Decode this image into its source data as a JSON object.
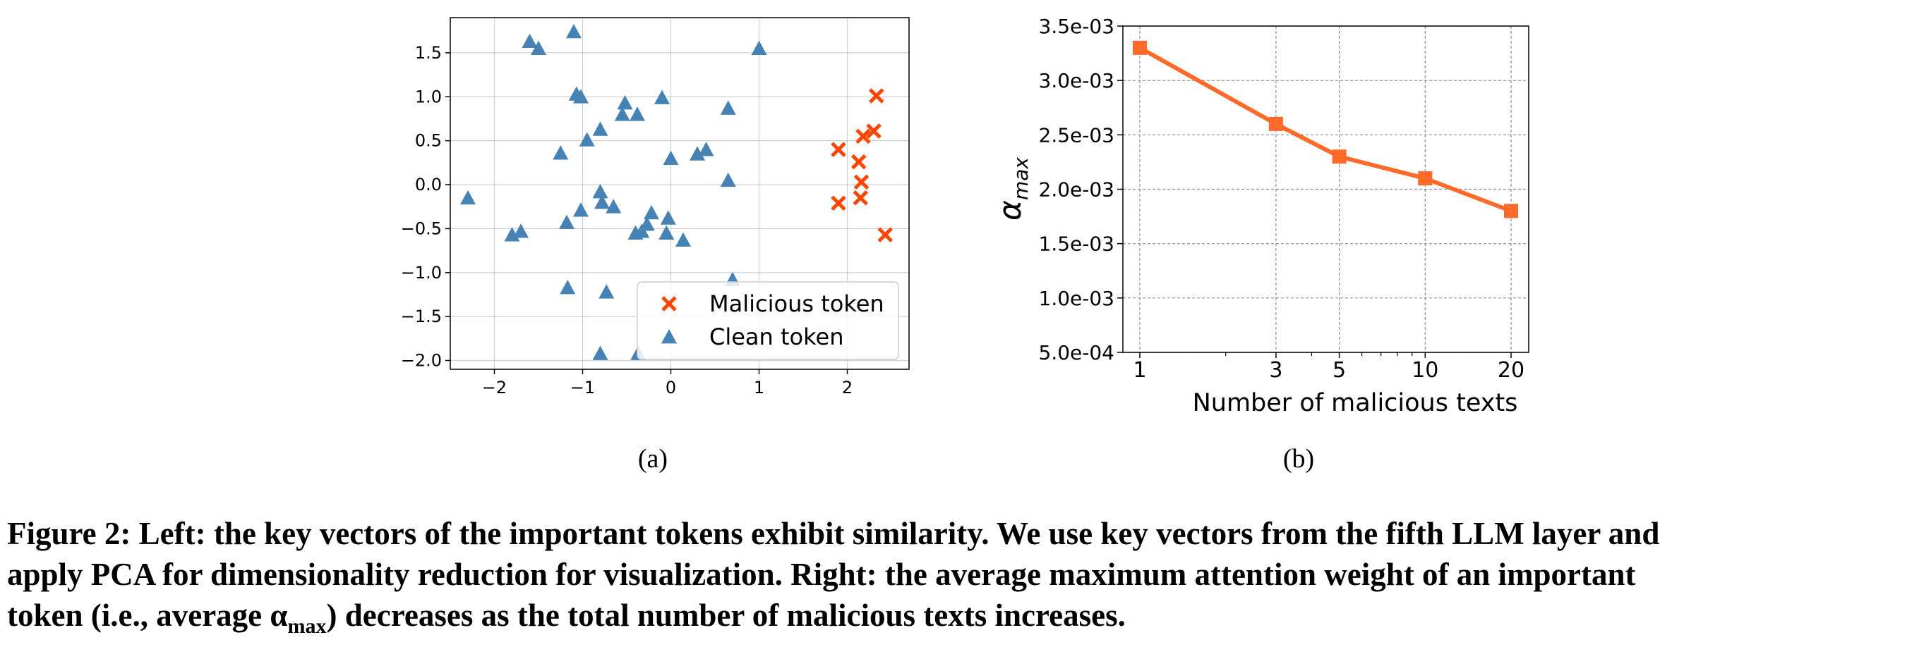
{
  "chart_data": [
    {
      "type": "scatter",
      "panel_label": "(a)",
      "xlim": [
        -2.5,
        2.7
      ],
      "ylim": [
        -2.1,
        1.9
      ],
      "xticks": [
        -2,
        -1,
        0,
        1,
        2
      ],
      "xtick_labels": [
        "−2",
        "−1",
        "0",
        "1",
        "2"
      ],
      "yticks": [
        -2.0,
        -1.5,
        -1.0,
        -0.5,
        0.0,
        0.5,
        1.0,
        1.5
      ],
      "ytick_labels": [
        "−2.0",
        "−1.5",
        "−1.0",
        "−0.5",
        "0.0",
        "0.5",
        "1.0",
        "1.5"
      ],
      "grid": true,
      "legend_position": "lower-right",
      "series": [
        {
          "name": "Malicious token",
          "marker": "x",
          "color": "#ff4500",
          "points": [
            [
              2.33,
              1.01
            ],
            [
              2.3,
              0.61
            ],
            [
              2.18,
              0.55
            ],
            [
              1.9,
              0.4
            ],
            [
              2.13,
              0.26
            ],
            [
              2.16,
              0.03
            ],
            [
              2.15,
              -0.15
            ],
            [
              1.9,
              -0.21
            ],
            [
              2.43,
              -0.57
            ]
          ]
        },
        {
          "name": "Clean token",
          "marker": "triangle",
          "color": "#4682b4",
          "points": [
            [
              -1.6,
              1.63
            ],
            [
              -1.5,
              1.55
            ],
            [
              -1.1,
              1.74
            ],
            [
              1.0,
              1.55
            ],
            [
              -1.07,
              1.03
            ],
            [
              -1.02,
              1.0
            ],
            [
              -0.1,
              0.99
            ],
            [
              0.65,
              0.87
            ],
            [
              -0.52,
              0.93
            ],
            [
              -0.55,
              0.8
            ],
            [
              -0.38,
              0.8
            ],
            [
              -0.8,
              0.63
            ],
            [
              -0.95,
              0.51
            ],
            [
              -1.25,
              0.36
            ],
            [
              0.3,
              0.35
            ],
            [
              0.4,
              0.4
            ],
            [
              0.0,
              0.3
            ],
            [
              0.65,
              0.05
            ],
            [
              -2.3,
              -0.15
            ],
            [
              -0.8,
              -0.08
            ],
            [
              -0.78,
              -0.2
            ],
            [
              -0.65,
              -0.25
            ],
            [
              -1.02,
              -0.29
            ],
            [
              -0.22,
              -0.32
            ],
            [
              -0.27,
              -0.45
            ],
            [
              -0.03,
              -0.38
            ],
            [
              -1.18,
              -0.43
            ],
            [
              -0.33,
              -0.53
            ],
            [
              -0.4,
              -0.55
            ],
            [
              -0.05,
              -0.55
            ],
            [
              0.14,
              -0.63
            ],
            [
              -1.7,
              -0.53
            ],
            [
              -1.8,
              -0.57
            ],
            [
              0.7,
              -1.08
            ],
            [
              -1.17,
              -1.17
            ],
            [
              -0.73,
              -1.22
            ],
            [
              -0.8,
              -1.92
            ],
            [
              -0.37,
              -1.92
            ]
          ]
        }
      ]
    },
    {
      "type": "line",
      "panel_label": "(b)",
      "xscale": "log",
      "x": [
        1,
        3,
        5,
        10,
        20
      ],
      "xtick_labels": [
        "1",
        "3",
        "5",
        "10",
        "20"
      ],
      "values": [
        0.0033,
        0.0026,
        0.0023,
        0.0021,
        0.0018
      ],
      "xlabel": "Number of malicious texts",
      "ylabel_symbol": "α",
      "ylabel_subscript": "max",
      "ylim": [
        0.0005,
        0.0035
      ],
      "yticks": [
        0.0005,
        0.001,
        0.0015,
        0.002,
        0.0025,
        0.003,
        0.0035
      ],
      "ytick_labels": [
        "5.0e-04",
        "1.0e-03",
        "1.5e-03",
        "2.0e-03",
        "2.5e-03",
        "3.0e-03",
        "3.5e-03"
      ],
      "grid": true,
      "color": "#ff6a2b"
    }
  ],
  "caption": {
    "line1": "Figure 2: Left: the key vectors of the important tokens exhibit similarity. We use key vectors from the fifth LLM layer and",
    "line2": "apply PCA for dimensionality reduction for visualization. Right: the average maximum attention weight of an important",
    "line3_start": "token (i.e., average ",
    "alpha": "α",
    "alpha_sub": "max",
    "line3_end": ") decreases as the total number of malicious texts increases."
  }
}
